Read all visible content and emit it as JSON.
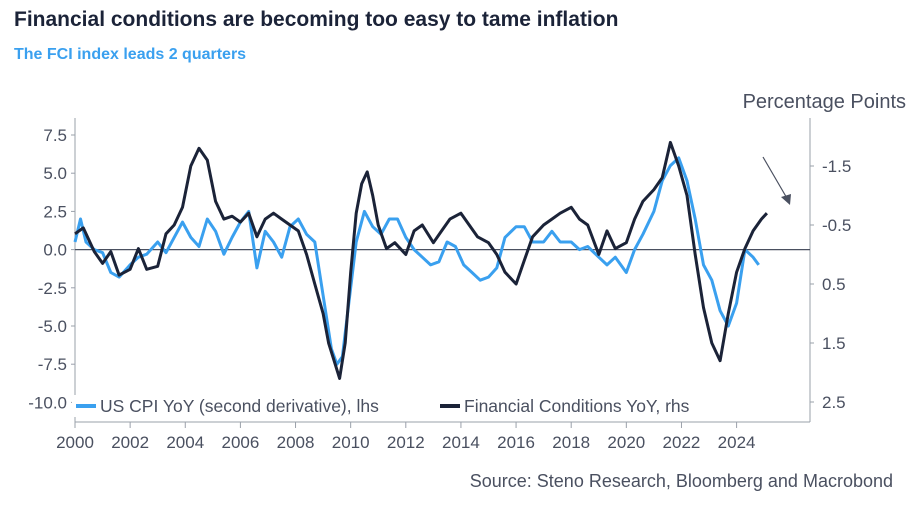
{
  "title": "Financial conditions are becoming too easy to tame inflation",
  "subtitle": "The FCI index leads 2 quarters",
  "source": "Source: Steno Research, Bloomberg and Macrobond",
  "colors": {
    "cpi": "#3aa0ef",
    "fci": "#1b2338",
    "axis": "#4a5060",
    "zero": "#4a5060"
  },
  "chart_data": {
    "type": "line",
    "title": "Financial conditions are becoming too easy to tame inflation",
    "subtitle": "The FCI index leads 2 quarters",
    "x_ticks": [
      "2000",
      "2002",
      "2004",
      "2006",
      "2008",
      "2010",
      "2012",
      "2014",
      "2016",
      "2018",
      "2020",
      "2022",
      "2024"
    ],
    "xlim": [
      2000,
      2026.3
    ],
    "y_left": {
      "ticks": [
        "7.5",
        "5.0",
        "2.5",
        "0.0",
        "-2.5",
        "-5.0",
        "-7.5",
        "-10.0"
      ],
      "range": [
        -10.5,
        8.5
      ]
    },
    "y_right": {
      "label": "Percentage Points",
      "ticks": [
        "-1.5",
        "-0.5",
        "0.5",
        "1.5",
        "2.5"
      ],
      "inverted": true,
      "range": [
        -2.5,
        3.0
      ]
    },
    "legend_position": "bottom-left",
    "annotation": "arrow pointing to latest Financial Conditions value",
    "series": [
      {
        "name": "US CPI YoY (second derivative), lhs",
        "axis": "left",
        "x": [
          2000.0,
          2000.2,
          2000.4,
          2000.7,
          2001.0,
          2001.3,
          2001.6,
          2002.0,
          2002.3,
          2002.6,
          2003.0,
          2003.3,
          2003.6,
          2003.9,
          2004.2,
          2004.5,
          2004.8,
          2005.1,
          2005.4,
          2005.7,
          2006.0,
          2006.3,
          2006.6,
          2006.9,
          2007.2,
          2007.5,
          2007.8,
          2008.1,
          2008.4,
          2008.7,
          2009.0,
          2009.3,
          2009.5,
          2009.7,
          2009.9,
          2010.2,
          2010.5,
          2010.8,
          2011.1,
          2011.4,
          2011.7,
          2012.0,
          2012.3,
          2012.6,
          2012.9,
          2013.2,
          2013.5,
          2013.8,
          2014.1,
          2014.4,
          2014.7,
          2015.0,
          2015.3,
          2015.6,
          2016.0,
          2016.3,
          2016.6,
          2017.0,
          2017.3,
          2017.6,
          2018.0,
          2018.3,
          2018.6,
          2019.0,
          2019.3,
          2019.6,
          2020.0,
          2020.3,
          2020.6,
          2021.0,
          2021.3,
          2021.6,
          2021.9,
          2022.2,
          2022.5,
          2022.8,
          2023.1,
          2023.4,
          2023.7,
          2024.0,
          2024.3,
          2024.6,
          2024.8
        ],
        "y": [
          0.5,
          2.0,
          0.5,
          0.0,
          -0.2,
          -1.5,
          -1.8,
          -1.0,
          -0.5,
          -0.3,
          0.5,
          -0.2,
          0.8,
          1.8,
          0.8,
          0.2,
          2.0,
          1.2,
          -0.3,
          0.8,
          1.8,
          2.5,
          -1.2,
          1.2,
          0.5,
          -0.5,
          1.5,
          2.0,
          1.0,
          0.5,
          -3.0,
          -6.5,
          -7.5,
          -7.0,
          -4.0,
          0.5,
          2.5,
          1.5,
          1.0,
          2.0,
          2.0,
          0.8,
          0.0,
          -0.5,
          -1.0,
          -0.8,
          0.5,
          0.2,
          -1.0,
          -1.5,
          -2.0,
          -1.8,
          -1.2,
          0.8,
          1.5,
          1.5,
          0.5,
          0.5,
          1.2,
          0.5,
          0.5,
          0.0,
          0.2,
          -0.5,
          -1.0,
          -0.5,
          -1.5,
          0.0,
          1.0,
          2.5,
          4.5,
          5.5,
          6.0,
          4.5,
          2.0,
          -1.0,
          -2.0,
          -4.0,
          -5.0,
          -3.5,
          0.0,
          -0.5,
          -1.0
        ]
      },
      {
        "name": "Financial Conditions YoY, rhs",
        "axis": "right",
        "x": [
          2000.0,
          2000.3,
          2000.7,
          2001.0,
          2001.3,
          2001.6,
          2002.0,
          2002.3,
          2002.6,
          2003.0,
          2003.3,
          2003.6,
          2003.9,
          2004.2,
          2004.5,
          2004.8,
          2005.1,
          2005.4,
          2005.7,
          2006.0,
          2006.3,
          2006.6,
          2006.9,
          2007.2,
          2007.5,
          2007.8,
          2008.1,
          2008.4,
          2008.7,
          2009.0,
          2009.2,
          2009.4,
          2009.6,
          2009.8,
          2010.0,
          2010.2,
          2010.4,
          2010.6,
          2010.8,
          2011.0,
          2011.3,
          2011.6,
          2012.0,
          2012.3,
          2012.6,
          2013.0,
          2013.3,
          2013.6,
          2014.0,
          2014.3,
          2014.6,
          2015.0,
          2015.3,
          2015.6,
          2016.0,
          2016.3,
          2016.6,
          2017.0,
          2017.3,
          2017.6,
          2018.0,
          2018.3,
          2018.6,
          2019.0,
          2019.3,
          2019.6,
          2020.0,
          2020.3,
          2020.6,
          2021.0,
          2021.3,
          2021.6,
          2021.9,
          2022.2,
          2022.5,
          2022.8,
          2023.1,
          2023.4,
          2023.7,
          2024.0,
          2024.3,
          2024.6,
          2024.9,
          2025.1
        ],
        "y": [
          -0.35,
          -0.45,
          -0.05,
          0.15,
          -0.05,
          0.35,
          0.25,
          -0.1,
          0.25,
          0.2,
          -0.35,
          -0.5,
          -0.8,
          -1.5,
          -1.8,
          -1.6,
          -0.9,
          -0.6,
          -0.65,
          -0.55,
          -0.7,
          -0.3,
          -0.6,
          -0.7,
          -0.6,
          -0.5,
          -0.4,
          0.0,
          0.5,
          1.0,
          1.5,
          1.8,
          2.1,
          1.5,
          0.3,
          -0.7,
          -1.2,
          -1.4,
          -1.0,
          -0.5,
          -0.1,
          -0.2,
          0.0,
          -0.4,
          -0.5,
          -0.2,
          -0.4,
          -0.6,
          -0.7,
          -0.5,
          -0.3,
          -0.2,
          0.0,
          0.3,
          0.5,
          0.1,
          -0.3,
          -0.5,
          -0.6,
          -0.7,
          -0.8,
          -0.6,
          -0.5,
          0.0,
          -0.4,
          -0.1,
          -0.2,
          -0.6,
          -0.9,
          -1.1,
          -1.3,
          -1.9,
          -1.5,
          -1.0,
          0.0,
          0.9,
          1.5,
          1.8,
          1.0,
          0.3,
          -0.1,
          -0.4,
          -0.6,
          -0.7
        ]
      }
    ]
  }
}
